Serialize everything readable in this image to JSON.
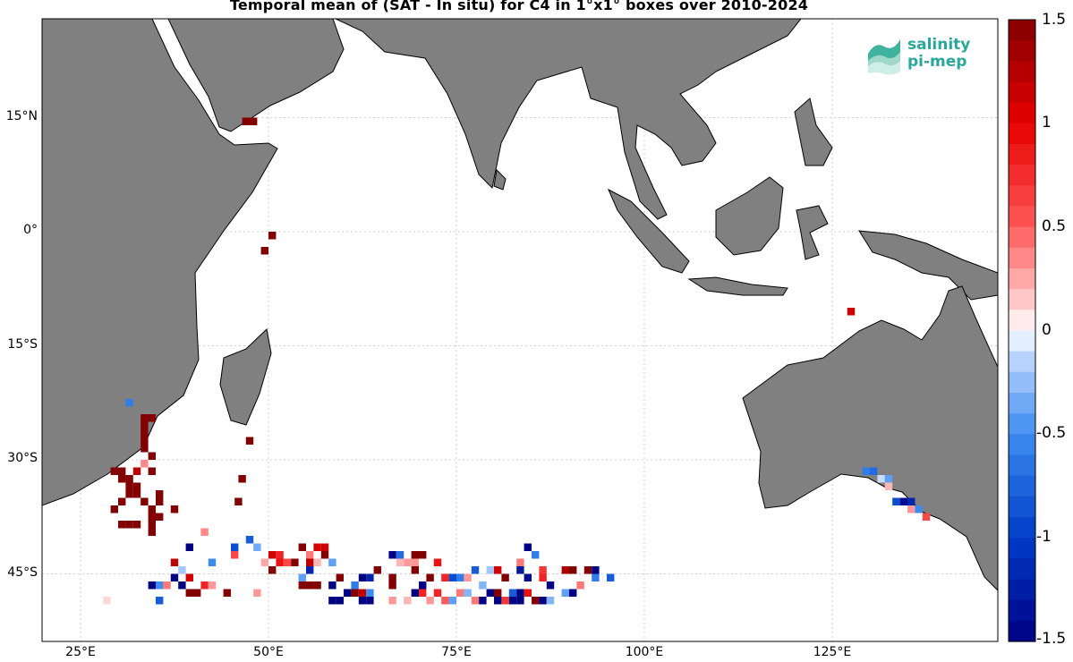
{
  "title": "Temporal mean of (SAT - In situ) for C4 in 1°x1° boxes over 2010-2024",
  "logo": {
    "line1": "salinity",
    "line2": "pi-mep"
  },
  "axes": {
    "lat_ticks": [
      "15°N",
      "0°",
      "15°S",
      "30°S",
      "45°S"
    ],
    "lon_ticks": [
      "25°E",
      "50°E",
      "75°E",
      "100°E",
      "125°E"
    ]
  },
  "colorbar": {
    "ticks": [
      "1.5",
      "1",
      "0.5",
      "0",
      "-0.5",
      "-1",
      "-1.5"
    ],
    "min": -1.5,
    "max": 1.5,
    "levels": 30
  },
  "chart_data": {
    "type": "heatmap",
    "title": "Temporal mean of (SAT - In situ) for C4 in 1°x1° boxes over 2010-2024",
    "lon_range": [
      20,
      148
    ],
    "lat_range": [
      -51,
      30
    ],
    "units": "degrees",
    "colormap": "blue-white-red",
    "clim": [
      -1.5,
      1.5
    ],
    "cells": [
      {
        "lon": 47,
        "lat": 14.5,
        "v": 1.5
      },
      {
        "lon": 48,
        "lat": 14.5,
        "v": 1.5
      },
      {
        "lon": 50.5,
        "lat": -0.5,
        "v": 1.5
      },
      {
        "lon": 49.5,
        "lat": -2.5,
        "v": 1.5
      },
      {
        "lon": 127.5,
        "lat": -10.5,
        "v": 1.1
      },
      {
        "lon": 31.5,
        "lat": -22.5,
        "v": -0.6
      },
      {
        "lon": 33.5,
        "lat": -24.5,
        "v": 1.5
      },
      {
        "lon": 34.5,
        "lat": -24.5,
        "v": 1.5
      },
      {
        "lon": 33.5,
        "lat": -25.5,
        "v": 1.5
      },
      {
        "lon": 33.5,
        "lat": -26.5,
        "v": 1.5
      },
      {
        "lon": 33.5,
        "lat": -27.5,
        "v": 1.5
      },
      {
        "lon": 47.5,
        "lat": -27.5,
        "v": 1.5
      },
      {
        "lon": 33.5,
        "lat": -28.5,
        "v": 1.5
      },
      {
        "lon": 34.5,
        "lat": -29.5,
        "v": 1.5
      },
      {
        "lon": 33.5,
        "lat": -30.5,
        "v": 0.35
      },
      {
        "lon": 34.5,
        "lat": -31.5,
        "v": 1.5
      },
      {
        "lon": 29.5,
        "lat": -31.5,
        "v": 1.5
      },
      {
        "lon": 30.5,
        "lat": -31.5,
        "v": 1.5
      },
      {
        "lon": 32.5,
        "lat": -31.5,
        "v": 1.2
      },
      {
        "lon": 30.5,
        "lat": -32.5,
        "v": 1.5
      },
      {
        "lon": 31.5,
        "lat": -32.5,
        "v": 1.5
      },
      {
        "lon": 46.5,
        "lat": -32.5,
        "v": 1.5
      },
      {
        "lon": 31.5,
        "lat": -33.5,
        "v": 1.5
      },
      {
        "lon": 32.5,
        "lat": -33.5,
        "v": 1.5
      },
      {
        "lon": 31.5,
        "lat": -34.5,
        "v": 1.5
      },
      {
        "lon": 32.5,
        "lat": -34.5,
        "v": 1.5
      },
      {
        "lon": 30.5,
        "lat": -35.5,
        "v": 1.5
      },
      {
        "lon": 33.5,
        "lat": -35.5,
        "v": 1.5
      },
      {
        "lon": 35.5,
        "lat": -35.5,
        "v": 1.5
      },
      {
        "lon": 46,
        "lat": -35.5,
        "v": 1.5
      },
      {
        "lon": 35.5,
        "lat": -34.5,
        "v": 1.5
      },
      {
        "lon": 34.5,
        "lat": -36.5,
        "v": 1.5
      },
      {
        "lon": 37.5,
        "lat": -36.5,
        "v": 1.5
      },
      {
        "lon": 29.5,
        "lat": -36.5,
        "v": 1.5
      },
      {
        "lon": 34.5,
        "lat": -37.5,
        "v": 1.5
      },
      {
        "lon": 35.5,
        "lat": -37.5,
        "v": 1.5
      },
      {
        "lon": 30.5,
        "lat": -38.5,
        "v": 1.5
      },
      {
        "lon": 31.5,
        "lat": -38.5,
        "v": 1.5
      },
      {
        "lon": 32.5,
        "lat": -38.5,
        "v": 1.5
      },
      {
        "lon": 34.5,
        "lat": -38.5,
        "v": 1.5
      },
      {
        "lon": 34.5,
        "lat": -39.5,
        "v": 1.5
      },
      {
        "lon": 41.5,
        "lat": -39.5,
        "v": 0.35
      },
      {
        "lon": 45.5,
        "lat": -41.5,
        "v": -0.9
      },
      {
        "lon": 39.5,
        "lat": -41.5,
        "v": -1.5
      },
      {
        "lon": 47.5,
        "lat": -40.5,
        "v": -0.8
      },
      {
        "lon": 48.5,
        "lat": -41.5,
        "v": -0.35
      },
      {
        "lon": 54.5,
        "lat": -41.5,
        "v": 1.5
      },
      {
        "lon": 56.5,
        "lat": -41.5,
        "v": 1.1
      },
      {
        "lon": 50.5,
        "lat": -42.5,
        "v": 1.1
      },
      {
        "lon": 51.5,
        "lat": -42.5,
        "v": 0.8
      },
      {
        "lon": 55.5,
        "lat": -42.5,
        "v": 0.4
      },
      {
        "lon": 57.5,
        "lat": -42.5,
        "v": 1.5
      },
      {
        "lon": 57.5,
        "lat": -41.5,
        "v": 1.1
      },
      {
        "lon": 37.5,
        "lat": -43.5,
        "v": 1.2
      },
      {
        "lon": 45.5,
        "lat": -42.5,
        "v": 0.6
      },
      {
        "lon": 49.5,
        "lat": -43.5,
        "v": 0.25
      },
      {
        "lon": 51.5,
        "lat": -43.5,
        "v": 0.9
      },
      {
        "lon": 52.5,
        "lat": -43.5,
        "v": 0.6
      },
      {
        "lon": 53.5,
        "lat": -43.5,
        "v": 1.5
      },
      {
        "lon": 55.5,
        "lat": -43.5,
        "v": 1.2
      },
      {
        "lon": 56.5,
        "lat": -43.5,
        "v": 0.2
      },
      {
        "lon": 58.5,
        "lat": -43.5,
        "v": -0.4
      },
      {
        "lon": 66.5,
        "lat": -42.5,
        "v": -1.5
      },
      {
        "lon": 67.5,
        "lat": -42.5,
        "v": -0.7
      },
      {
        "lon": 69.5,
        "lat": -42.5,
        "v": 1.5
      },
      {
        "lon": 70.5,
        "lat": -42.5,
        "v": 1.5
      },
      {
        "lon": 84.5,
        "lat": -41.5,
        "v": -1.5
      },
      {
        "lon": 85.5,
        "lat": -42.5,
        "v": -0.6
      },
      {
        "lon": 38.5,
        "lat": -44.5,
        "v": -0.2
      },
      {
        "lon": 42.5,
        "lat": -43.5,
        "v": -0.5
      },
      {
        "lon": 50.5,
        "lat": -44.5,
        "v": 1.5
      },
      {
        "lon": 64.5,
        "lat": -44.5,
        "v": 1.5
      },
      {
        "lon": 67.5,
        "lat": -43.5,
        "v": 0.2
      },
      {
        "lon": 68.5,
        "lat": -43.5,
        "v": 0.3
      },
      {
        "lon": 69.5,
        "lat": -43.5,
        "v": 0.3
      },
      {
        "lon": 72.5,
        "lat": -43.5,
        "v": 0.9
      },
      {
        "lon": 83.5,
        "lat": -44.5,
        "v": -1.3
      },
      {
        "lon": 37.5,
        "lat": -45.5,
        "v": -1.5
      },
      {
        "lon": 39.5,
        "lat": -45.5,
        "v": 1.1
      },
      {
        "lon": 54.5,
        "lat": -45.5,
        "v": -0.4
      },
      {
        "lon": 55.5,
        "lat": -44.5,
        "v": -1.2
      },
      {
        "lon": 59.5,
        "lat": -45.5,
        "v": 1.5
      },
      {
        "lon": 62.5,
        "lat": -45.5,
        "v": -1.5
      },
      {
        "lon": 66.5,
        "lat": -45.5,
        "v": 1.5
      },
      {
        "lon": 69.5,
        "lat": -44.5,
        "v": 1.5
      },
      {
        "lon": 77.5,
        "lat": -44.5,
        "v": -0.8
      },
      {
        "lon": 79.5,
        "lat": -44.5,
        "v": -0.2
      },
      {
        "lon": 83.5,
        "lat": -43.5,
        "v": 0.4
      },
      {
        "lon": 80.5,
        "lat": -44.5,
        "v": 1.1
      },
      {
        "lon": 89.5,
        "lat": -44.5,
        "v": 1.3
      },
      {
        "lon": 92.5,
        "lat": -44.5,
        "v": 1.5
      },
      {
        "lon": 93.5,
        "lat": -44.5,
        "v": -1.5
      },
      {
        "lon": 90.5,
        "lat": -44.5,
        "v": 1.5
      },
      {
        "lon": 86.5,
        "lat": -44.5,
        "v": 0.7
      },
      {
        "lon": 34.5,
        "lat": -46.5,
        "v": -1.5
      },
      {
        "lon": 35.5,
        "lat": -46.5,
        "v": -0.5
      },
      {
        "lon": 36.5,
        "lat": -46.5,
        "v": 0.4
      },
      {
        "lon": 38.5,
        "lat": -46.5,
        "v": -1.5
      },
      {
        "lon": 41.5,
        "lat": -46.5,
        "v": 0.8
      },
      {
        "lon": 42.5,
        "lat": -46.5,
        "v": 0.3
      },
      {
        "lon": 54.5,
        "lat": -46.5,
        "v": 1.5
      },
      {
        "lon": 55.5,
        "lat": -46.5,
        "v": 1.5
      },
      {
        "lon": 56.5,
        "lat": -46.5,
        "v": 1.5
      },
      {
        "lon": 58.5,
        "lat": -46.5,
        "v": -1.5
      },
      {
        "lon": 61.5,
        "lat": -46.5,
        "v": -0.6
      },
      {
        "lon": 63.5,
        "lat": -45.5,
        "v": -1.2
      },
      {
        "lon": 70.5,
        "lat": -46.5,
        "v": -1.5
      },
      {
        "lon": 71.5,
        "lat": -45.5,
        "v": 1.5
      },
      {
        "lon": 73.5,
        "lat": -45.5,
        "v": 0.8
      },
      {
        "lon": 74.5,
        "lat": -45.5,
        "v": -0.9
      },
      {
        "lon": 75.5,
        "lat": -45.5,
        "v": -0.6
      },
      {
        "lon": 76.5,
        "lat": -45.5,
        "v": 0.3
      },
      {
        "lon": 78.5,
        "lat": -46.5,
        "v": -0.3
      },
      {
        "lon": 81.5,
        "lat": -45.5,
        "v": 1.5
      },
      {
        "lon": 84.5,
        "lat": -45.5,
        "v": -1.4
      },
      {
        "lon": 86.5,
        "lat": -45.5,
        "v": 0.8
      },
      {
        "lon": 93.5,
        "lat": -45.5,
        "v": -0.6
      },
      {
        "lon": 95.5,
        "lat": -45.5,
        "v": -0.8
      },
      {
        "lon": 39.5,
        "lat": -47.5,
        "v": 1.5
      },
      {
        "lon": 40.5,
        "lat": -47.5,
        "v": 1.5
      },
      {
        "lon": 44.5,
        "lat": -47.5,
        "v": 1.5
      },
      {
        "lon": 48.5,
        "lat": -47.5,
        "v": 0.3
      },
      {
        "lon": 60.5,
        "lat": -47.5,
        "v": -1.5
      },
      {
        "lon": 61.5,
        "lat": -47.5,
        "v": 1.5
      },
      {
        "lon": 62.5,
        "lat": -47.5,
        "v": 1.2
      },
      {
        "lon": 63.5,
        "lat": -47.5,
        "v": -0.5
      },
      {
        "lon": 66.5,
        "lat": -46.5,
        "v": 1.5
      },
      {
        "lon": 69.5,
        "lat": -47.5,
        "v": -1.5
      },
      {
        "lon": 70.5,
        "lat": -47.5,
        "v": 0.8
      },
      {
        "lon": 72.5,
        "lat": -47.5,
        "v": 0.8
      },
      {
        "lon": 75.5,
        "lat": -47.5,
        "v": 0.4
      },
      {
        "lon": 76.5,
        "lat": -47.5,
        "v": -0.3
      },
      {
        "lon": 79.5,
        "lat": -47.5,
        "v": -1.5
      },
      {
        "lon": 80.5,
        "lat": -47.5,
        "v": 1.5
      },
      {
        "lon": 82.5,
        "lat": -47.5,
        "v": -0.8
      },
      {
        "lon": 83.5,
        "lat": -47.5,
        "v": -1.5
      },
      {
        "lon": 84.5,
        "lat": -47.5,
        "v": 0.9
      },
      {
        "lon": 87.5,
        "lat": -46.5,
        "v": -1.5
      },
      {
        "lon": 89.5,
        "lat": -47.5,
        "v": -0.4
      },
      {
        "lon": 90.5,
        "lat": -47.5,
        "v": -1.5
      },
      {
        "lon": 91.5,
        "lat": -46.5,
        "v": 0.4
      },
      {
        "lon": 28.5,
        "lat": -48.5,
        "v": 0.1
      },
      {
        "lon": 35.5,
        "lat": -48.5,
        "v": -0.8
      },
      {
        "lon": 58.5,
        "lat": -48.5,
        "v": -1.5
      },
      {
        "lon": 59.5,
        "lat": -48.5,
        "v": -1.5
      },
      {
        "lon": 62.5,
        "lat": -48.5,
        "v": -1.5
      },
      {
        "lon": 63.5,
        "lat": -48.5,
        "v": -1.5
      },
      {
        "lon": 66.5,
        "lat": -48.5,
        "v": 0.3
      },
      {
        "lon": 68.5,
        "lat": -48.5,
        "v": 0.2
      },
      {
        "lon": 71.5,
        "lat": -48.5,
        "v": 0.3
      },
      {
        "lon": 73.5,
        "lat": -48.5,
        "v": 0.5
      },
      {
        "lon": 74.5,
        "lat": -48.5,
        "v": -0.4
      },
      {
        "lon": 77.5,
        "lat": -48.5,
        "v": 0.4
      },
      {
        "lon": 78.5,
        "lat": -48.5,
        "v": -1.5
      },
      {
        "lon": 80.5,
        "lat": -48.5,
        "v": -1.5
      },
      {
        "lon": 81.5,
        "lat": -48.5,
        "v": 0.7
      },
      {
        "lon": 82.5,
        "lat": -48.5,
        "v": -1.5
      },
      {
        "lon": 83.5,
        "lat": -48.5,
        "v": -1.5
      },
      {
        "lon": 85.5,
        "lat": -48.5,
        "v": 1.5
      },
      {
        "lon": 86.5,
        "lat": -48.5,
        "v": -1.5
      },
      {
        "lon": 87.5,
        "lat": -48.5,
        "v": -0.3
      },
      {
        "lon": 129.5,
        "lat": -31.5,
        "v": -0.6
      },
      {
        "lon": 130.5,
        "lat": -31.5,
        "v": -0.7
      },
      {
        "lon": 131.5,
        "lat": -32.5,
        "v": -0.1
      },
      {
        "lon": 132.5,
        "lat": -32.5,
        "v": -0.4
      },
      {
        "lon": 132.5,
        "lat": -33.5,
        "v": 0.2
      },
      {
        "lon": 133.5,
        "lat": -35.5,
        "v": -0.9
      },
      {
        "lon": 134.5,
        "lat": -35.5,
        "v": -1.4
      },
      {
        "lon": 135.5,
        "lat": -35.5,
        "v": -1.2
      },
      {
        "lon": 135.5,
        "lat": -36.5,
        "v": 0.3
      },
      {
        "lon": 136.5,
        "lat": -36.5,
        "v": -0.5
      },
      {
        "lon": 137.5,
        "lat": -37.5,
        "v": 0.6
      }
    ]
  }
}
